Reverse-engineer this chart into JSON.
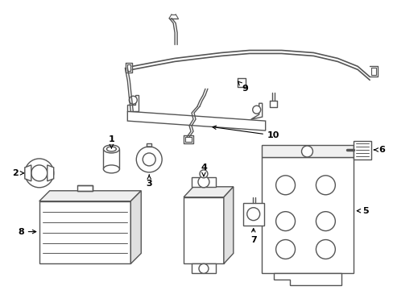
{
  "background_color": "#ffffff",
  "line_color": "#555555",
  "lw": 1.0,
  "figsize": [
    4.89,
    3.6
  ],
  "dpi": 100,
  "xlim": [
    0,
    489
  ],
  "ylim": [
    0,
    360
  ]
}
